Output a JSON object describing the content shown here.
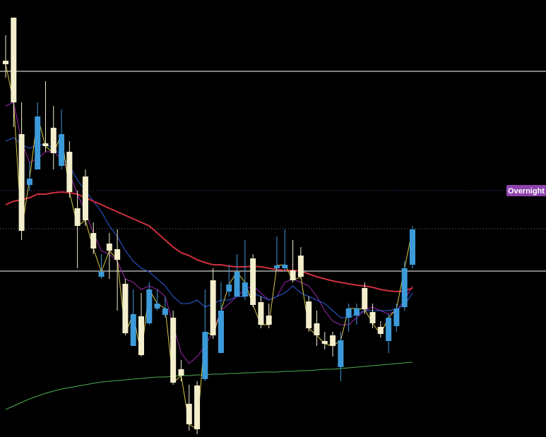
{
  "chart_data": {
    "type": "candlestick",
    "ylim": [
      0,
      619
    ],
    "up_color": "#3d9ad9",
    "down_color": "#f3eecb",
    "open": [
      533,
      594,
      429,
      357,
      379,
      416,
      438,
      384,
      404,
      324,
      369,
      289,
      227,
      274,
      266,
      217,
      129,
      171,
      161,
      182,
      173,
      169,
      96,
      47,
      73,
      82,
      222,
      119,
      206,
      199,
      199,
      253,
      191,
      172,
      239,
      239,
      236,
      257,
      192,
      161,
      136,
      144,
      99,
      169,
      172,
      211,
      177,
      156,
      136,
      157,
      184,
      244
    ],
    "high": [
      569,
      594,
      474,
      389,
      474,
      504,
      469,
      464,
      419,
      349,
      379,
      304,
      259,
      289,
      294,
      224,
      209,
      204,
      219,
      209,
      199,
      179,
      109,
      74,
      79,
      209,
      239,
      219,
      244,
      259,
      279,
      259,
      199,
      189,
      284,
      294,
      279,
      269,
      199,
      179,
      149,
      149,
      149,
      189,
      189,
      219,
      189,
      164,
      174,
      189,
      249,
      299
    ],
    "low": [
      509,
      439,
      279,
      349,
      379,
      404,
      379,
      379,
      339,
      239,
      299,
      259,
      224,
      224,
      179,
      144,
      129,
      114,
      159,
      179,
      169,
      74,
      79,
      9,
      4,
      79,
      139,
      119,
      199,
      199,
      194,
      184,
      154,
      154,
      234,
      234,
      219,
      224,
      149,
      129,
      124,
      114,
      79,
      149,
      159,
      174,
      154,
      141,
      119,
      149,
      179,
      239
    ],
    "close": [
      528,
      474,
      292,
      366,
      454,
      412,
      402,
      429,
      347,
      299,
      307,
      267,
      234,
      264,
      251,
      147,
      174,
      116,
      209,
      189,
      182,
      77,
      87,
      18,
      11,
      149,
      144,
      179,
      216,
      234,
      219,
      187,
      159,
      159,
      243,
      244,
      222,
      227,
      154,
      144,
      132,
      129,
      137,
      182,
      182,
      181,
      161,
      146,
      169,
      182,
      239,
      294
    ],
    "close_line_color": "#d8c84a",
    "lines": [
      {
        "color": "#9c27b0",
        "values": [
          469,
          474,
          419,
          389,
          394,
          404,
          404,
          394,
          374,
          344,
          319,
          289,
          264,
          259,
          249,
          224,
          219,
          209,
          214,
          209,
          199,
          159,
          119,
          104,
          114,
          129,
          149,
          179,
          189,
          199,
          209,
          214,
          204,
          194,
          199,
          219,
          224,
          219,
          214,
          199,
          179,
          164,
          159,
          159,
          169,
          179,
          184,
          179,
          174,
          179,
          194,
          214
        ]
      },
      {
        "color": "#2f5fe0",
        "values": [
          419,
          424,
          414,
          409,
          414,
          414,
          409,
          399,
          384,
          364,
          349,
          334,
          319,
          299,
          284,
          264,
          249,
          239,
          234,
          224,
          214,
          199,
          189,
          189,
          194,
          184,
          189,
          194,
          194,
          199,
          199,
          204,
          199,
          194,
          199,
          204,
          214,
          204,
          199,
          194,
          189,
          179,
          169,
          169,
          174,
          179,
          179,
          179,
          179,
          181,
          187,
          204
        ]
      },
      {
        "color": "#d0303f",
        "values": [
          329,
          334,
          336,
          339,
          344,
          344,
          346,
          347,
          346,
          344,
          339,
          334,
          329,
          324,
          319,
          314,
          309,
          304,
          299,
          289,
          279,
          269,
          261,
          257,
          251,
          247,
          244,
          244,
          242,
          241,
          241,
          242,
          241,
          239,
          237,
          236,
          236,
          235,
          231,
          227,
          224,
          221,
          219,
          217,
          215,
          214,
          212,
          209,
          207,
          206,
          207,
          211
        ]
      },
      {
        "color": "#4caf50",
        "values": [
          39,
          44,
          49,
          54,
          58,
          62,
          65,
          68,
          70,
          72,
          74,
          76,
          78,
          79,
          80,
          81,
          82,
          83,
          84,
          85,
          85,
          86,
          87,
          87,
          88,
          88,
          89,
          89,
          90,
          90,
          91,
          91,
          92,
          92,
          92,
          93,
          93,
          94,
          94,
          95,
          96,
          96,
          97,
          98,
          99,
          100,
          101,
          102,
          103,
          104,
          105,
          106
        ]
      }
    ],
    "levels": [
      {
        "value": 518,
        "color": "#ffffff",
        "style": "solid"
      },
      {
        "value": 349,
        "color": "#8e44ad",
        "style": "dotted",
        "label": "Overnight"
      },
      {
        "value": 295,
        "color": "#888888",
        "style": "dotted"
      },
      {
        "value": 235,
        "color": "#ffffff",
        "style": "solid"
      }
    ]
  }
}
